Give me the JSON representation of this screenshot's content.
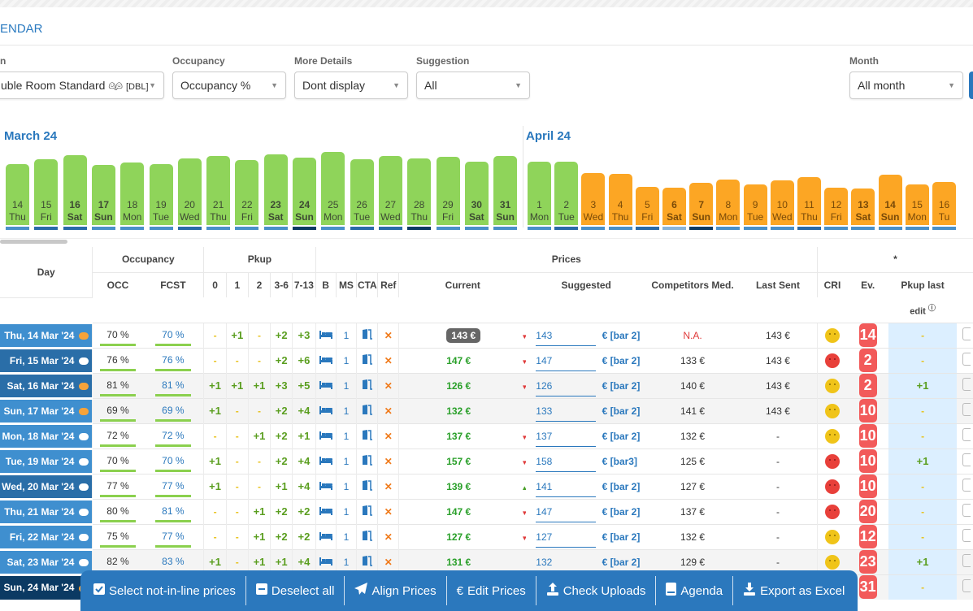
{
  "header": {
    "title": "ENDAR"
  },
  "filters": [
    {
      "label": "n",
      "value": "uble Room Standard",
      "suffix": "[DBL]",
      "icon": "people-icon"
    },
    {
      "label": "Occupancy",
      "value": "Occupancy %"
    },
    {
      "label": "More Details",
      "value": "Dont display"
    },
    {
      "label": "Suggestion",
      "value": "All"
    },
    {
      "label": "Month",
      "value": "All month"
    }
  ],
  "calendar": {
    "months": [
      "March 24",
      "April 24"
    ],
    "colors": {
      "green": "#8fd45a",
      "orange": "#fca624",
      "marker_light": "#4a90c8",
      "marker_mid": "#2a6aa8",
      "marker_dark": "#0b3a63",
      "marker_pale": "#8ab4d8"
    },
    "days": [
      {
        "d": "14",
        "w": "Thu",
        "v": 70,
        "c": "green",
        "m": "light"
      },
      {
        "d": "15",
        "w": "Fri",
        "v": 76,
        "c": "green",
        "m": "mid"
      },
      {
        "d": "16",
        "w": "Sat",
        "v": 81,
        "c": "green",
        "m": "mid",
        "bold": true
      },
      {
        "d": "17",
        "w": "Sun",
        "v": 69,
        "c": "green",
        "m": "light",
        "bold": true
      },
      {
        "d": "18",
        "w": "Mon",
        "v": 72,
        "c": "green",
        "m": "light"
      },
      {
        "d": "19",
        "w": "Tue",
        "v": 70,
        "c": "green",
        "m": "light"
      },
      {
        "d": "20",
        "w": "Wed",
        "v": 77,
        "c": "green",
        "m": "mid"
      },
      {
        "d": "21",
        "w": "Thu",
        "v": 80,
        "c": "green",
        "m": "light"
      },
      {
        "d": "22",
        "w": "Fri",
        "v": 75,
        "c": "green",
        "m": "light"
      },
      {
        "d": "23",
        "w": "Sat",
        "v": 82,
        "c": "green",
        "m": "light",
        "bold": true
      },
      {
        "d": "24",
        "w": "Sun",
        "v": 78,
        "c": "green",
        "m": "dark",
        "bold": true
      },
      {
        "d": "25",
        "w": "Mon",
        "v": 85,
        "c": "green",
        "m": "light"
      },
      {
        "d": "26",
        "w": "Tue",
        "v": 76,
        "c": "green",
        "m": "mid"
      },
      {
        "d": "27",
        "w": "Wed",
        "v": 80,
        "c": "green",
        "m": "mid"
      },
      {
        "d": "28",
        "w": "Thu",
        "v": 77,
        "c": "green",
        "m": "dark"
      },
      {
        "d": "29",
        "w": "Fri",
        "v": 79,
        "c": "green",
        "m": "light"
      },
      {
        "d": "30",
        "w": "Sat",
        "v": 73,
        "c": "green",
        "m": "light",
        "bold": true
      },
      {
        "d": "31",
        "w": "Sun",
        "v": 80,
        "c": "green",
        "m": "light",
        "bold": true
      },
      {
        "d": "1",
        "w": "Mon",
        "v": 73,
        "c": "green",
        "m": "light"
      },
      {
        "d": "2",
        "w": "Tue",
        "v": 73,
        "c": "green",
        "m": "mid"
      },
      {
        "d": "3",
        "w": "Wed",
        "v": 59,
        "c": "orange",
        "m": "light"
      },
      {
        "d": "4",
        "w": "Thu",
        "v": 58,
        "c": "orange",
        "m": "light"
      },
      {
        "d": "5",
        "w": "Fri",
        "v": 42,
        "c": "orange",
        "m": "mid"
      },
      {
        "d": "6",
        "w": "Sat",
        "v": 41,
        "c": "orange",
        "m": "pale",
        "bold": true
      },
      {
        "d": "7",
        "w": "Sun",
        "v": 47,
        "c": "orange",
        "m": "dark",
        "bold": true
      },
      {
        "d": "8",
        "w": "Mon",
        "v": 51,
        "c": "orange",
        "m": "light"
      },
      {
        "d": "9",
        "w": "Tue",
        "v": 45,
        "c": "orange",
        "m": "light"
      },
      {
        "d": "10",
        "w": "Wed",
        "v": 50,
        "c": "orange",
        "m": "light"
      },
      {
        "d": "11",
        "w": "Thu",
        "v": 54,
        "c": "orange",
        "m": "mid"
      },
      {
        "d": "12",
        "w": "Fri",
        "v": 41,
        "c": "orange",
        "m": "light"
      },
      {
        "d": "13",
        "w": "Sat",
        "v": 40,
        "c": "orange",
        "m": "light",
        "bold": true
      },
      {
        "d": "14",
        "w": "Sun",
        "v": 57,
        "c": "orange",
        "m": "light",
        "bold": true
      },
      {
        "d": "15",
        "w": "Mon",
        "v": 45,
        "c": "orange",
        "m": "light"
      },
      {
        "d": "16",
        "w": "Tu",
        "v": 48,
        "c": "orange",
        "m": "light"
      }
    ]
  },
  "table": {
    "groups": {
      "occupancy": "Occupancy",
      "pkup": "Pkup",
      "prices": "Prices",
      "star": "*"
    },
    "columns": {
      "day": "Day",
      "occ": "OCC",
      "fcst": "FCST",
      "p0": "0",
      "p1": "1",
      "p2": "2",
      "p36": "3-6",
      "p713": "7-13",
      "b": "B",
      "ms": "MS",
      "cta": "CTA",
      "ref": "Ref",
      "current": "Current",
      "suggested": "Suggested",
      "comp": "Competitors Med.",
      "last": "Last Sent",
      "cri": "CRI",
      "ev": "Ev.",
      "pkuplast": "Pkup last",
      "pkuplast2": "edit"
    },
    "rows": [
      {
        "day": "Thu, 14 Mar '24",
        "dc": "light",
        "note": "orange",
        "g": false,
        "occ": "70 %",
        "fcst": "70 %",
        "pk": [
          "-",
          "+1",
          "-",
          "+2",
          "+3"
        ],
        "ms": "1",
        "cur": "143 €",
        "curBadge": true,
        "arrow": "down",
        "sugg": "143",
        "bar": "€ [bar 2]",
        "comp": "N.A.",
        "last": "143 €",
        "cri": "neutral",
        "ev": "14",
        "pl": "-"
      },
      {
        "day": "Fri, 15 Mar '24",
        "dc": "mid",
        "note": "white",
        "g": false,
        "occ": "76 %",
        "fcst": "76 %",
        "pk": [
          "-",
          "-",
          "-",
          "+2",
          "+6"
        ],
        "ms": "1",
        "cur": "147 €",
        "arrow": "down",
        "sugg": "147",
        "bar": "€ [bar 2]",
        "comp": "133 €",
        "last": "143 €",
        "cri": "sad",
        "ev": "2",
        "pl": "-"
      },
      {
        "day": "Sat, 16 Mar '24",
        "dc": "mid",
        "note": "orange",
        "g": true,
        "occ": "81 %",
        "fcst": "81 %",
        "pk": [
          "+1",
          "+1",
          "+1",
          "+3",
          "+5"
        ],
        "ms": "1",
        "cur": "126 €",
        "arrow": "down",
        "sugg": "126",
        "bar": "€ [bar 2]",
        "comp": "140 €",
        "last": "143 €",
        "cri": "neutral",
        "ev": "2",
        "pl": "+1"
      },
      {
        "day": "Sun, 17 Mar '24",
        "dc": "light",
        "note": "orange",
        "g": true,
        "occ": "69 %",
        "fcst": "69 %",
        "pk": [
          "+1",
          "-",
          "-",
          "+2",
          "+4"
        ],
        "ms": "1",
        "cur": "132 €",
        "arrow": "",
        "sugg": "133",
        "bar": "€ [bar 2]",
        "comp": "141 €",
        "last": "143 €",
        "cri": "neutral",
        "ev": "10",
        "pl": "-"
      },
      {
        "day": "Mon, 18 Mar '24",
        "dc": "light",
        "note": "white",
        "g": false,
        "occ": "72 %",
        "fcst": "72 %",
        "pk": [
          "-",
          "-",
          "+1",
          "+2",
          "+1"
        ],
        "ms": "1",
        "cur": "137 €",
        "arrow": "down",
        "sugg": "137",
        "bar": "€ [bar 2]",
        "comp": "132 €",
        "last": "-",
        "cri": "neutral",
        "ev": "10",
        "pl": "-"
      },
      {
        "day": "Tue, 19 Mar '24",
        "dc": "light",
        "note": "white",
        "g": false,
        "occ": "70 %",
        "fcst": "70 %",
        "pk": [
          "+1",
          "-",
          "-",
          "+2",
          "+4"
        ],
        "ms": "1",
        "cur": "157 €",
        "arrow": "down",
        "sugg": "158",
        "bar": "€ [bar3]",
        "comp": "125 €",
        "last": "-",
        "cri": "sad",
        "ev": "10",
        "pl": "+1"
      },
      {
        "day": "Wed, 20 Mar '24",
        "dc": "mid",
        "note": "white",
        "g": false,
        "occ": "77 %",
        "fcst": "77 %",
        "pk": [
          "+1",
          "-",
          "-",
          "+1",
          "+4"
        ],
        "ms": "1",
        "cur": "139 €",
        "arrow": "up",
        "sugg": "141",
        "bar": "€ [bar 2]",
        "comp": "127 €",
        "last": "-",
        "cri": "sad",
        "ev": "10",
        "pl": "-"
      },
      {
        "day": "Thu, 21 Mar '24",
        "dc": "light",
        "note": "white",
        "g": false,
        "occ": "80 %",
        "fcst": "81 %",
        "pk": [
          "-",
          "-",
          "+1",
          "+2",
          "+2"
        ],
        "ms": "1",
        "cur": "147 €",
        "arrow": "down",
        "sugg": "147",
        "bar": "€ [bar 2]",
        "comp": "137 €",
        "last": "-",
        "cri": "sad",
        "ev": "20",
        "pl": "-"
      },
      {
        "day": "Fri, 22 Mar '24",
        "dc": "light",
        "note": "white",
        "g": false,
        "occ": "75 %",
        "fcst": "77 %",
        "pk": [
          "-",
          "-",
          "+1",
          "+2",
          "+2"
        ],
        "ms": "1",
        "cur": "127 €",
        "arrow": "down",
        "sugg": "127",
        "bar": "€ [bar 2]",
        "comp": "132 €",
        "last": "-",
        "cri": "neutral",
        "ev": "12",
        "pl": "-"
      },
      {
        "day": "Sat, 23 Mar '24",
        "dc": "light",
        "note": "white",
        "g": true,
        "occ": "82 %",
        "fcst": "83 %",
        "pk": [
          "+1",
          "-",
          "+1",
          "+1",
          "+4"
        ],
        "ms": "1",
        "cur": "131 €",
        "arrow": "",
        "sugg": "132",
        "bar": "€ [bar 2]",
        "comp": "129 €",
        "last": "-",
        "cri": "neutral",
        "ev": "23",
        "pl": "+1"
      },
      {
        "day": "Sun, 24 Mar '24",
        "dc": "dark",
        "note": "orange",
        "g": true,
        "occ": "",
        "fcst": "",
        "pk": [
          "",
          "",
          "",
          "",
          ""
        ],
        "ms": "",
        "cur": "",
        "arrow": "",
        "sugg": "",
        "bar": "",
        "comp": "",
        "last": "",
        "cri": "",
        "ev": "31",
        "pl": "-"
      }
    ]
  },
  "toolbar": [
    {
      "label": "Select not-in-line prices",
      "icon": "checkbox-icon"
    },
    {
      "label": "Deselect all",
      "icon": "minus-square-icon"
    },
    {
      "label": "Align Prices",
      "icon": "paper-plane-icon"
    },
    {
      "label": "Edit Prices",
      "icon": "euro-icon"
    },
    {
      "label": "Check Uploads",
      "icon": "upload-icon"
    },
    {
      "label": "Agenda",
      "icon": "book-icon"
    },
    {
      "label": "Export as Excel",
      "icon": "download-icon"
    }
  ]
}
